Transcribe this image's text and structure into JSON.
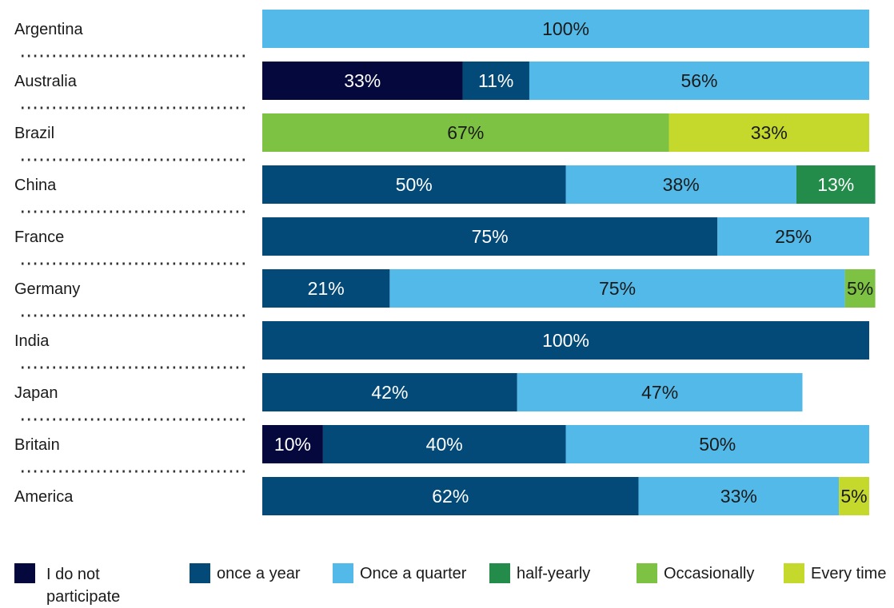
{
  "chart_data": {
    "type": "bar",
    "orientation": "horizontal",
    "stacked": true,
    "categories": [
      "Argentina",
      "Australia",
      "Brazil",
      "China",
      "France",
      "Germany",
      "India",
      "Japan",
      "Britain",
      "America"
    ],
    "series": [
      {
        "name": "I do not participate",
        "color": "#04083c",
        "values": [
          0,
          33,
          0,
          0,
          0,
          0,
          0,
          0,
          10,
          0
        ],
        "labels": [
          "",
          "33%",
          "",
          "",
          "",
          "",
          "",
          "",
          "10%",
          ""
        ]
      },
      {
        "name": "once a year",
        "color": "#034a78",
        "values": [
          0,
          11,
          0,
          50,
          75,
          21,
          100,
          42,
          40,
          62
        ],
        "labels": [
          "",
          "11%",
          "",
          "50%",
          "75%",
          "21%",
          "100%",
          "42%",
          "40%",
          "62%"
        ]
      },
      {
        "name": "Once a quarter",
        "color": "#53b9e8",
        "values": [
          100,
          56,
          0,
          38,
          25,
          75,
          0,
          47,
          50,
          33
        ],
        "labels": [
          "100%",
          "56%",
          "",
          "38%",
          "25%",
          "75%",
          "",
          "47%",
          "50%",
          "33%"
        ]
      },
      {
        "name": "half-yearly",
        "color": "#238c4a",
        "values": [
          0,
          0,
          0,
          13,
          0,
          0,
          0,
          0,
          0,
          0
        ],
        "labels": [
          "",
          "",
          "",
          "13%",
          "",
          "",
          "",
          "",
          "",
          ""
        ]
      },
      {
        "name": "Occasionally",
        "color": "#7dc242",
        "values": [
          0,
          0,
          67,
          0,
          0,
          5,
          0,
          0,
          0,
          0
        ],
        "labels": [
          "",
          "",
          "67%",
          "",
          "",
          "5%",
          "",
          "",
          "",
          ""
        ]
      },
      {
        "name": "Every time",
        "color": "#c5d92d",
        "values": [
          0,
          0,
          33,
          0,
          0,
          0,
          0,
          0,
          0,
          5
        ],
        "labels": [
          "",
          "",
          "33%",
          "",
          "",
          "",
          "",
          "",
          "",
          "5%"
        ]
      }
    ],
    "xlim": [
      0,
      100
    ],
    "legend_position": "bottom",
    "grid": false
  },
  "legend": {
    "items": [
      {
        "label": "I do not participate",
        "color": "#04083c"
      },
      {
        "label": "once a year",
        "color": "#034a78"
      },
      {
        "label": "Once a quarter",
        "color": "#53b9e8"
      },
      {
        "label": "half-yearly",
        "color": "#238c4a"
      },
      {
        "label": "Occasionally",
        "color": "#7dc242"
      },
      {
        "label": "Every time",
        "color": "#c5d92d"
      }
    ]
  }
}
